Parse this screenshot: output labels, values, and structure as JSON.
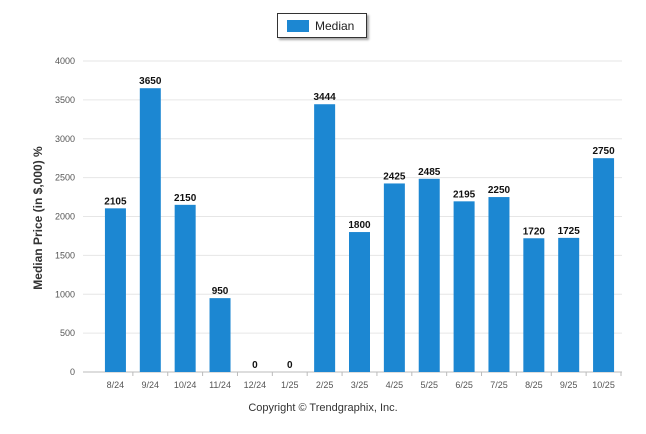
{
  "legend": {
    "label": "Median",
    "color": "#1c87d2"
  },
  "footer": "Copyright © Trendgraphix, Inc.",
  "chart_data": {
    "type": "bar",
    "ylabel": "Median Price (in $,000) %",
    "xlabel": "",
    "ylim": [
      0,
      4000
    ],
    "yticks": [
      0,
      500,
      1000,
      1500,
      2000,
      2500,
      3000,
      3500,
      4000
    ],
    "grid": true,
    "legend_position": "top-center",
    "categories": [
      "8/24",
      "9/24",
      "10/24",
      "11/24",
      "12/24",
      "1/25",
      "2/25",
      "3/25",
      "4/25",
      "5/25",
      "6/25",
      "7/25",
      "8/25",
      "9/25",
      "10/25"
    ],
    "series": [
      {
        "name": "Median",
        "values": [
          2105,
          3650,
          2150,
          950,
          0,
          0,
          3444,
          1800,
          2425,
          2485,
          2195,
          2250,
          1720,
          1725,
          2750
        ],
        "color": "#1c87d2"
      }
    ]
  }
}
